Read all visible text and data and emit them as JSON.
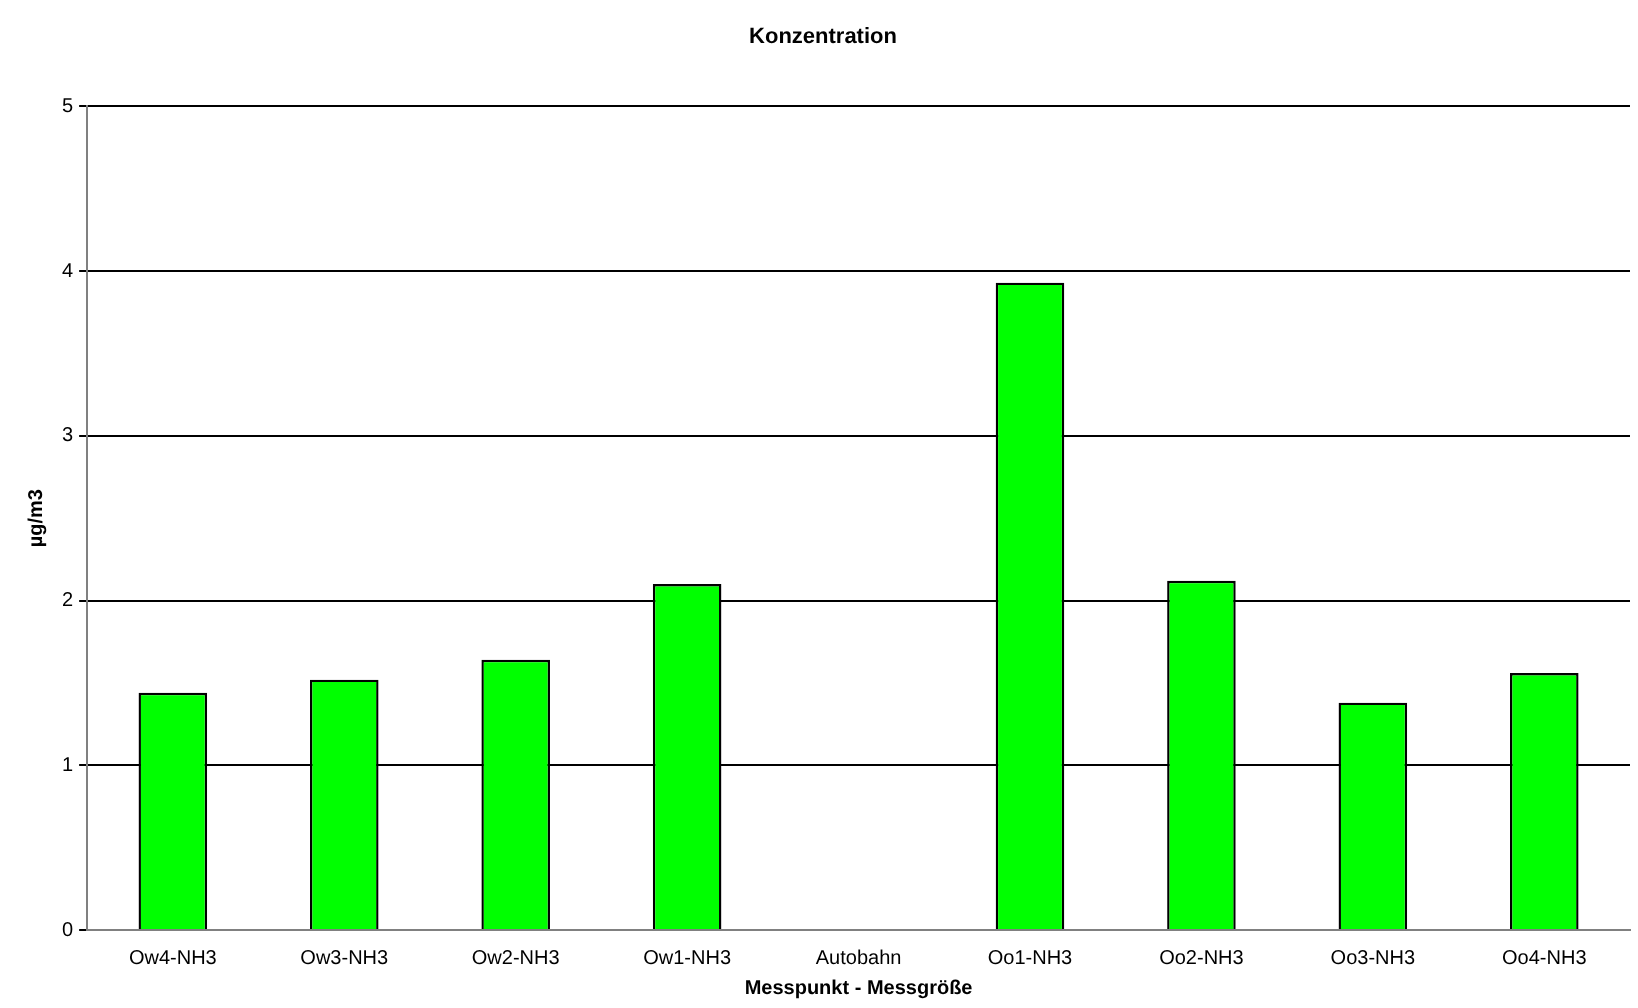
{
  "chart_data": {
    "type": "bar",
    "title": "Konzentration",
    "xlabel": "Messpunkt - Messgröße",
    "ylabel": "µg/m3",
    "categories": [
      "Ow4-NH3",
      "Ow3-NH3",
      "Ow2-NH3",
      "Ow1-NH3",
      "Autobahn",
      "Oo1-NH3",
      "Oo2-NH3",
      "Oo3-NH3",
      "Oo4-NH3"
    ],
    "values": [
      1.44,
      1.52,
      1.64,
      2.1,
      null,
      3.93,
      2.12,
      1.38,
      1.56
    ],
    "color": "#00ff00",
    "ylim": [
      0,
      5
    ],
    "yticks": [
      0,
      1,
      2,
      3,
      4,
      5
    ],
    "grid": "y",
    "legend": false
  }
}
